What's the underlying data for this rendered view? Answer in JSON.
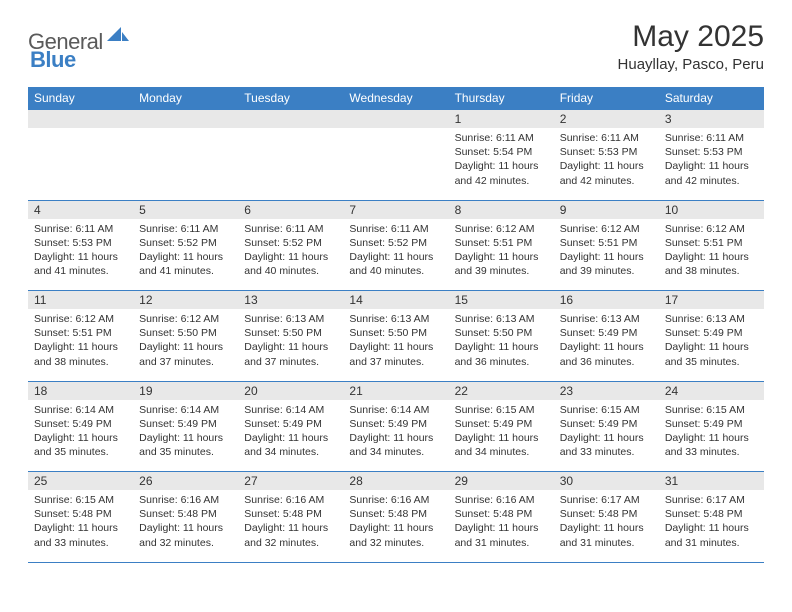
{
  "brand": {
    "part1": "General",
    "part2": "Blue"
  },
  "title": "May 2025",
  "location": "Huayllay, Pasco, Peru",
  "colors": {
    "accent": "#3b7fc4",
    "header_bg": "#3b7fc4",
    "daynum_bg": "#e8e8e8",
    "text": "#333333",
    "page_bg": "#ffffff"
  },
  "weekdays": [
    "Sunday",
    "Monday",
    "Tuesday",
    "Wednesday",
    "Thursday",
    "Friday",
    "Saturday"
  ],
  "weeks": [
    [
      {
        "n": "",
        "sr": "",
        "ss": "",
        "dl": ""
      },
      {
        "n": "",
        "sr": "",
        "ss": "",
        "dl": ""
      },
      {
        "n": "",
        "sr": "",
        "ss": "",
        "dl": ""
      },
      {
        "n": "",
        "sr": "",
        "ss": "",
        "dl": ""
      },
      {
        "n": "1",
        "sr": "6:11 AM",
        "ss": "5:54 PM",
        "dl": "11 hours and 42 minutes."
      },
      {
        "n": "2",
        "sr": "6:11 AM",
        "ss": "5:53 PM",
        "dl": "11 hours and 42 minutes."
      },
      {
        "n": "3",
        "sr": "6:11 AM",
        "ss": "5:53 PM",
        "dl": "11 hours and 42 minutes."
      }
    ],
    [
      {
        "n": "4",
        "sr": "6:11 AM",
        "ss": "5:53 PM",
        "dl": "11 hours and 41 minutes."
      },
      {
        "n": "5",
        "sr": "6:11 AM",
        "ss": "5:52 PM",
        "dl": "11 hours and 41 minutes."
      },
      {
        "n": "6",
        "sr": "6:11 AM",
        "ss": "5:52 PM",
        "dl": "11 hours and 40 minutes."
      },
      {
        "n": "7",
        "sr": "6:11 AM",
        "ss": "5:52 PM",
        "dl": "11 hours and 40 minutes."
      },
      {
        "n": "8",
        "sr": "6:12 AM",
        "ss": "5:51 PM",
        "dl": "11 hours and 39 minutes."
      },
      {
        "n": "9",
        "sr": "6:12 AM",
        "ss": "5:51 PM",
        "dl": "11 hours and 39 minutes."
      },
      {
        "n": "10",
        "sr": "6:12 AM",
        "ss": "5:51 PM",
        "dl": "11 hours and 38 minutes."
      }
    ],
    [
      {
        "n": "11",
        "sr": "6:12 AM",
        "ss": "5:51 PM",
        "dl": "11 hours and 38 minutes."
      },
      {
        "n": "12",
        "sr": "6:12 AM",
        "ss": "5:50 PM",
        "dl": "11 hours and 37 minutes."
      },
      {
        "n": "13",
        "sr": "6:13 AM",
        "ss": "5:50 PM",
        "dl": "11 hours and 37 minutes."
      },
      {
        "n": "14",
        "sr": "6:13 AM",
        "ss": "5:50 PM",
        "dl": "11 hours and 37 minutes."
      },
      {
        "n": "15",
        "sr": "6:13 AM",
        "ss": "5:50 PM",
        "dl": "11 hours and 36 minutes."
      },
      {
        "n": "16",
        "sr": "6:13 AM",
        "ss": "5:49 PM",
        "dl": "11 hours and 36 minutes."
      },
      {
        "n": "17",
        "sr": "6:13 AM",
        "ss": "5:49 PM",
        "dl": "11 hours and 35 minutes."
      }
    ],
    [
      {
        "n": "18",
        "sr": "6:14 AM",
        "ss": "5:49 PM",
        "dl": "11 hours and 35 minutes."
      },
      {
        "n": "19",
        "sr": "6:14 AM",
        "ss": "5:49 PM",
        "dl": "11 hours and 35 minutes."
      },
      {
        "n": "20",
        "sr": "6:14 AM",
        "ss": "5:49 PM",
        "dl": "11 hours and 34 minutes."
      },
      {
        "n": "21",
        "sr": "6:14 AM",
        "ss": "5:49 PM",
        "dl": "11 hours and 34 minutes."
      },
      {
        "n": "22",
        "sr": "6:15 AM",
        "ss": "5:49 PM",
        "dl": "11 hours and 34 minutes."
      },
      {
        "n": "23",
        "sr": "6:15 AM",
        "ss": "5:49 PM",
        "dl": "11 hours and 33 minutes."
      },
      {
        "n": "24",
        "sr": "6:15 AM",
        "ss": "5:49 PM",
        "dl": "11 hours and 33 minutes."
      }
    ],
    [
      {
        "n": "25",
        "sr": "6:15 AM",
        "ss": "5:48 PM",
        "dl": "11 hours and 33 minutes."
      },
      {
        "n": "26",
        "sr": "6:16 AM",
        "ss": "5:48 PM",
        "dl": "11 hours and 32 minutes."
      },
      {
        "n": "27",
        "sr": "6:16 AM",
        "ss": "5:48 PM",
        "dl": "11 hours and 32 minutes."
      },
      {
        "n": "28",
        "sr": "6:16 AM",
        "ss": "5:48 PM",
        "dl": "11 hours and 32 minutes."
      },
      {
        "n": "29",
        "sr": "6:16 AM",
        "ss": "5:48 PM",
        "dl": "11 hours and 31 minutes."
      },
      {
        "n": "30",
        "sr": "6:17 AM",
        "ss": "5:48 PM",
        "dl": "11 hours and 31 minutes."
      },
      {
        "n": "31",
        "sr": "6:17 AM",
        "ss": "5:48 PM",
        "dl": "11 hours and 31 minutes."
      }
    ]
  ],
  "labels": {
    "sunrise": "Sunrise:",
    "sunset": "Sunset:",
    "daylight": "Daylight:"
  }
}
